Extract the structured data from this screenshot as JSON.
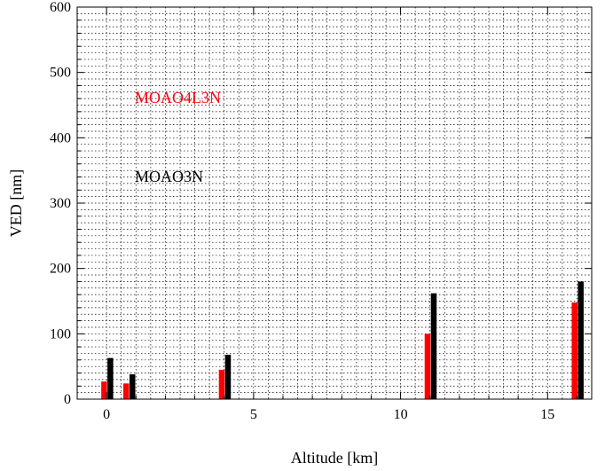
{
  "chart_data": {
    "type": "bar",
    "xlabel": "Altitude [km]",
    "ylabel": "VED [nm]",
    "xlim": [
      -1,
      16.5
    ],
    "ylim": [
      0,
      600
    ],
    "x_ticks": [
      0,
      5,
      10,
      15
    ],
    "y_ticks": [
      0,
      100,
      200,
      300,
      400,
      500,
      600
    ],
    "grid": true,
    "series": [
      {
        "name": "MOAO4L3N",
        "color": "#ff0000",
        "x": [
          0,
          0.75,
          4,
          11,
          16
        ],
        "values": [
          27,
          24,
          45,
          100,
          148
        ]
      },
      {
        "name": "MOAO3N",
        "color": "#000000",
        "x": [
          0,
          0.75,
          4,
          11,
          16
        ],
        "values": [
          63,
          38,
          68,
          162,
          180
        ]
      }
    ]
  }
}
